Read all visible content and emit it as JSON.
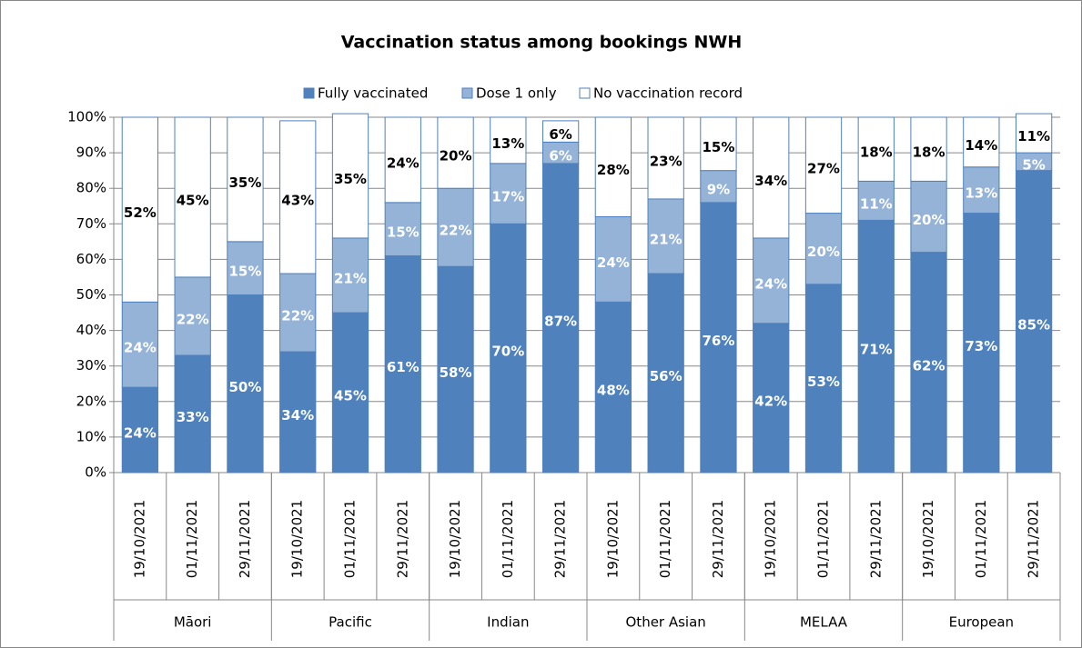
{
  "chart_data": {
    "type": "stacked_bar",
    "title": "Vaccination status among bookings NWH",
    "categories": [
      "19/10/2021",
      "01/11/2021",
      "29/11/2021",
      "19/10/2021",
      "01/11/2021",
      "29/11/2021",
      "19/10/2021",
      "01/11/2021",
      "29/11/2021",
      "19/10/2021",
      "01/11/2021",
      "29/11/2021",
      "19/10/2021",
      "01/11/2021",
      "29/11/2021",
      "19/10/2021",
      "01/11/2021",
      "29/11/2021"
    ],
    "groups": [
      "Māori",
      "Pacific",
      "Indian",
      "Other Asian",
      "MELAA",
      "European"
    ],
    "series": [
      {
        "name": "Fully vaccinated",
        "color": "#4f81bd",
        "label_color": "#ffffff",
        "values": [
          24,
          33,
          50,
          34,
          45,
          61,
          58,
          70,
          87,
          48,
          56,
          76,
          42,
          53,
          71,
          62,
          73,
          85
        ],
        "value_labels": [
          "24%",
          "33%",
          "50%",
          "34%",
          "45%",
          "61%",
          "58%",
          "70%",
          "87%",
          "48%",
          "56%",
          "76%",
          "42%",
          "53%",
          "71%",
          "62%",
          "73%",
          "85%"
        ]
      },
      {
        "name": "Dose 1 only",
        "color": "#95b3d7",
        "label_color": "#ffffff",
        "values": [
          24,
          22,
          15,
          22,
          21,
          15,
          22,
          17,
          6,
          24,
          21,
          9,
          24,
          20,
          11,
          20,
          13,
          5
        ],
        "value_labels": [
          "24%",
          "22%",
          "15%",
          "22%",
          "21%",
          "15%",
          "22%",
          "17%",
          "6%",
          "24%",
          "21%",
          "9%",
          "24%",
          "20%",
          "11%",
          "20%",
          "13%",
          "5%"
        ]
      },
      {
        "name": "No vaccination record",
        "color": "#ffffff",
        "label_color": "#000000",
        "values": [
          52,
          45,
          35,
          43,
          35,
          24,
          20,
          13,
          6,
          28,
          23,
          15,
          34,
          27,
          18,
          18,
          14,
          11
        ],
        "value_labels": [
          "52%",
          "45%",
          "35%",
          "43%",
          "35%",
          "24%",
          "20%",
          "13%",
          "6%",
          "28%",
          "23%",
          "15%",
          "34%",
          "27%",
          "18%",
          "18%",
          "14%",
          "11%"
        ]
      }
    ],
    "edgecolor": "#4f81bd",
    "ylim": [
      0,
      100
    ],
    "yticks": [
      {
        "value": 0,
        "label": "0%"
      },
      {
        "value": 10,
        "label": "10%"
      },
      {
        "value": 20,
        "label": "20%"
      },
      {
        "value": 30,
        "label": "30%"
      },
      {
        "value": 40,
        "label": "40%"
      },
      {
        "value": 50,
        "label": "50%"
      },
      {
        "value": 60,
        "label": "60%"
      },
      {
        "value": 70,
        "label": "70%"
      },
      {
        "value": 80,
        "label": "80%"
      },
      {
        "value": 90,
        "label": "90%"
      },
      {
        "value": 100,
        "label": "100%"
      }
    ],
    "grid": true,
    "legend": "top"
  }
}
